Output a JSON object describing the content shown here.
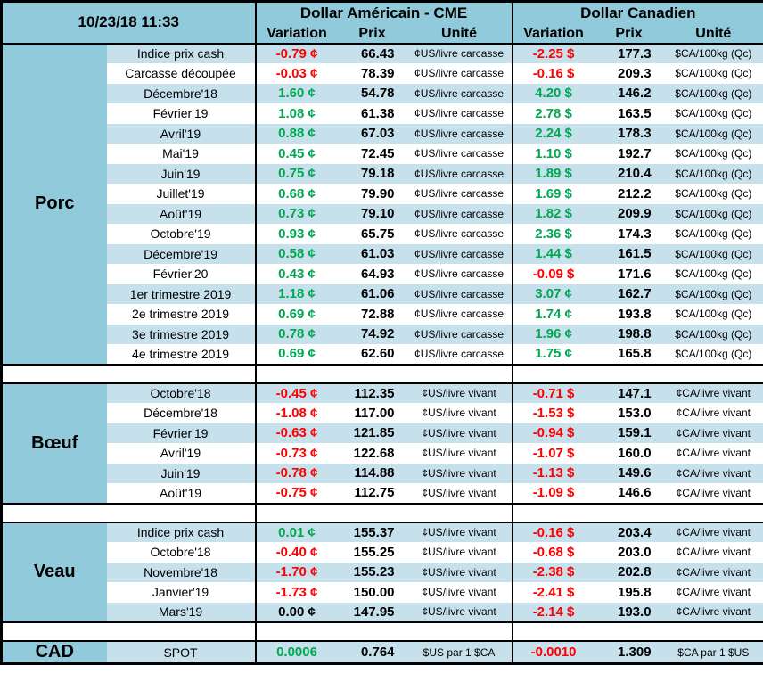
{
  "header": {
    "datetime": "10/23/18 11:33",
    "us_title": "Dollar Américain - CME",
    "ca_title": "Dollar Canadien",
    "col_variation": "Variation",
    "col_prix": "Prix",
    "col_unite": "Unité"
  },
  "colors": {
    "header_blue": "#91cadb",
    "stripe_blue": "#c6e1ec",
    "positive": "#00a651",
    "negative": "#ff0000",
    "neutral": "#000000"
  },
  "sections": [
    {
      "name": "Porc",
      "rows": [
        {
          "label": "Indice prix cash",
          "us": {
            "var": "-0.79 ¢",
            "trend": "down",
            "prix": "66.43",
            "unit": "¢US/livre carcasse"
          },
          "ca": {
            "var": "-2.25 $",
            "trend": "down",
            "prix": "177.3",
            "unit": "$CA/100kg (Qc)"
          }
        },
        {
          "label": "Carcasse découpée",
          "us": {
            "var": "-0.03 ¢",
            "trend": "down",
            "prix": "78.39",
            "unit": "¢US/livre carcasse"
          },
          "ca": {
            "var": "-0.16 $",
            "trend": "down",
            "prix": "209.3",
            "unit": "$CA/100kg (Qc)"
          }
        },
        {
          "label": "Décembre'18",
          "us": {
            "var": "1.60 ¢",
            "trend": "up",
            "prix": "54.78",
            "unit": "¢US/livre carcasse"
          },
          "ca": {
            "var": "4.20 $",
            "trend": "up",
            "prix": "146.2",
            "unit": "$CA/100kg (Qc)"
          }
        },
        {
          "label": "Février'19",
          "us": {
            "var": "1.08 ¢",
            "trend": "up",
            "prix": "61.38",
            "unit": "¢US/livre carcasse"
          },
          "ca": {
            "var": "2.78 $",
            "trend": "up",
            "prix": "163.5",
            "unit": "$CA/100kg (Qc)"
          }
        },
        {
          "label": "Avril'19",
          "us": {
            "var": "0.88 ¢",
            "trend": "up",
            "prix": "67.03",
            "unit": "¢US/livre carcasse"
          },
          "ca": {
            "var": "2.24 $",
            "trend": "up",
            "prix": "178.3",
            "unit": "$CA/100kg (Qc)"
          }
        },
        {
          "label": "Mai'19",
          "us": {
            "var": "0.45 ¢",
            "trend": "up",
            "prix": "72.45",
            "unit": "¢US/livre carcasse"
          },
          "ca": {
            "var": "1.10 $",
            "trend": "up",
            "prix": "192.7",
            "unit": "$CA/100kg (Qc)"
          }
        },
        {
          "label": "Juin'19",
          "us": {
            "var": "0.75 ¢",
            "trend": "up",
            "prix": "79.18",
            "unit": "¢US/livre carcasse"
          },
          "ca": {
            "var": "1.89 $",
            "trend": "up",
            "prix": "210.4",
            "unit": "$CA/100kg (Qc)"
          }
        },
        {
          "label": "Juillet'19",
          "us": {
            "var": "0.68 ¢",
            "trend": "up",
            "prix": "79.90",
            "unit": "¢US/livre carcasse"
          },
          "ca": {
            "var": "1.69 $",
            "trend": "up",
            "prix": "212.2",
            "unit": "$CA/100kg (Qc)"
          }
        },
        {
          "label": "Août'19",
          "us": {
            "var": "0.73 ¢",
            "trend": "up",
            "prix": "79.10",
            "unit": "¢US/livre carcasse"
          },
          "ca": {
            "var": "1.82 $",
            "trend": "up",
            "prix": "209.9",
            "unit": "$CA/100kg (Qc)"
          }
        },
        {
          "label": "Octobre'19",
          "us": {
            "var": "0.93 ¢",
            "trend": "up",
            "prix": "65.75",
            "unit": "¢US/livre carcasse"
          },
          "ca": {
            "var": "2.36 $",
            "trend": "up",
            "prix": "174.3",
            "unit": "$CA/100kg (Qc)"
          }
        },
        {
          "label": "Décembre'19",
          "us": {
            "var": "0.58 ¢",
            "trend": "up",
            "prix": "61.03",
            "unit": "¢US/livre carcasse"
          },
          "ca": {
            "var": "1.44 $",
            "trend": "up",
            "prix": "161.5",
            "unit": "$CA/100kg (Qc)"
          }
        },
        {
          "label": "Février'20",
          "us": {
            "var": "0.43 ¢",
            "trend": "up",
            "prix": "64.93",
            "unit": "¢US/livre carcasse"
          },
          "ca": {
            "var": "-0.09 $",
            "trend": "down",
            "prix": "171.6",
            "unit": "$CA/100kg (Qc)"
          }
        },
        {
          "label": "1er trimestre 2019",
          "us": {
            "var": "1.18 ¢",
            "trend": "up",
            "prix": "61.06",
            "unit": "¢US/livre carcasse"
          },
          "ca": {
            "var": "3.07 ¢",
            "trend": "up",
            "prix": "162.7",
            "unit": "$CA/100kg (Qc)"
          }
        },
        {
          "label": "2e trimestre 2019",
          "us": {
            "var": "0.69 ¢",
            "trend": "up",
            "prix": "72.88",
            "unit": "¢US/livre carcasse"
          },
          "ca": {
            "var": "1.74 ¢",
            "trend": "up",
            "prix": "193.8",
            "unit": "$CA/100kg (Qc)"
          }
        },
        {
          "label": "3e trimestre 2019",
          "us": {
            "var": "0.78 ¢",
            "trend": "up",
            "prix": "74.92",
            "unit": "¢US/livre carcasse"
          },
          "ca": {
            "var": "1.96 ¢",
            "trend": "up",
            "prix": "198.8",
            "unit": "$CA/100kg (Qc)"
          }
        },
        {
          "label": "4e trimestre 2019",
          "us": {
            "var": "0.69 ¢",
            "trend": "up",
            "prix": "62.60",
            "unit": "¢US/livre carcasse"
          },
          "ca": {
            "var": "1.75 ¢",
            "trend": "up",
            "prix": "165.8",
            "unit": "$CA/100kg (Qc)"
          }
        }
      ]
    },
    {
      "name": "Bœuf",
      "rows": [
        {
          "label": "Octobre'18",
          "us": {
            "var": "-0.45 ¢",
            "trend": "down",
            "prix": "112.35",
            "unit": "¢US/livre vivant"
          },
          "ca": {
            "var": "-0.71 $",
            "trend": "down",
            "prix": "147.1",
            "unit": "¢CA/livre vivant"
          }
        },
        {
          "label": "Décembre'18",
          "us": {
            "var": "-1.08 ¢",
            "trend": "down",
            "prix": "117.00",
            "unit": "¢US/livre vivant"
          },
          "ca": {
            "var": "-1.53 $",
            "trend": "down",
            "prix": "153.0",
            "unit": "¢CA/livre vivant"
          }
        },
        {
          "label": "Février'19",
          "us": {
            "var": "-0.63 ¢",
            "trend": "down",
            "prix": "121.85",
            "unit": "¢US/livre vivant"
          },
          "ca": {
            "var": "-0.94 $",
            "trend": "down",
            "prix": "159.1",
            "unit": "¢CA/livre vivant"
          }
        },
        {
          "label": "Avril'19",
          "us": {
            "var": "-0.73 ¢",
            "trend": "down",
            "prix": "122.68",
            "unit": "¢US/livre vivant"
          },
          "ca": {
            "var": "-1.07 $",
            "trend": "down",
            "prix": "160.0",
            "unit": "¢CA/livre vivant"
          }
        },
        {
          "label": "Juin'19",
          "us": {
            "var": "-0.78 ¢",
            "trend": "down",
            "prix": "114.88",
            "unit": "¢US/livre vivant"
          },
          "ca": {
            "var": "-1.13 $",
            "trend": "down",
            "prix": "149.6",
            "unit": "¢CA/livre vivant"
          }
        },
        {
          "label": "Août'19",
          "us": {
            "var": "-0.75 ¢",
            "trend": "down",
            "prix": "112.75",
            "unit": "¢US/livre vivant"
          },
          "ca": {
            "var": "-1.09 $",
            "trend": "down",
            "prix": "146.6",
            "unit": "¢CA/livre vivant"
          }
        }
      ]
    },
    {
      "name": "Veau",
      "rows": [
        {
          "label": "Indice prix cash",
          "us": {
            "var": "0.01 ¢",
            "trend": "up",
            "prix": "155.37",
            "unit": "¢US/livre vivant"
          },
          "ca": {
            "var": "-0.16 $",
            "trend": "down",
            "prix": "203.4",
            "unit": "¢CA/livre vivant"
          }
        },
        {
          "label": "Octobre'18",
          "us": {
            "var": "-0.40 ¢",
            "trend": "down",
            "prix": "155.25",
            "unit": "¢US/livre vivant"
          },
          "ca": {
            "var": "-0.68 $",
            "trend": "down",
            "prix": "203.0",
            "unit": "¢CA/livre vivant"
          }
        },
        {
          "label": "Novembre'18",
          "us": {
            "var": "-1.70 ¢",
            "trend": "down",
            "prix": "155.23",
            "unit": "¢US/livre vivant"
          },
          "ca": {
            "var": "-2.38 $",
            "trend": "down",
            "prix": "202.8",
            "unit": "¢CA/livre vivant"
          }
        },
        {
          "label": "Janvier'19",
          "us": {
            "var": "-1.73 ¢",
            "trend": "down",
            "prix": "150.00",
            "unit": "¢US/livre vivant"
          },
          "ca": {
            "var": "-2.41 $",
            "trend": "down",
            "prix": "195.8",
            "unit": "¢CA/livre vivant"
          }
        },
        {
          "label": "Mars'19",
          "us": {
            "var": "0.00 ¢",
            "trend": "flat",
            "prix": "147.95",
            "unit": "¢US/livre vivant"
          },
          "ca": {
            "var": "-2.14 $",
            "trend": "down",
            "prix": "193.0",
            "unit": "¢CA/livre vivant"
          }
        }
      ]
    },
    {
      "name": "CAD",
      "rows": [
        {
          "label": "SPOT",
          "us": {
            "var": "0.0006",
            "trend": "up",
            "prix": "0.764",
            "unit": "$US par 1 $CA"
          },
          "ca": {
            "var": "-0.0010",
            "trend": "down",
            "prix": "1.309",
            "unit": "$CA par 1 $US"
          }
        }
      ]
    }
  ]
}
